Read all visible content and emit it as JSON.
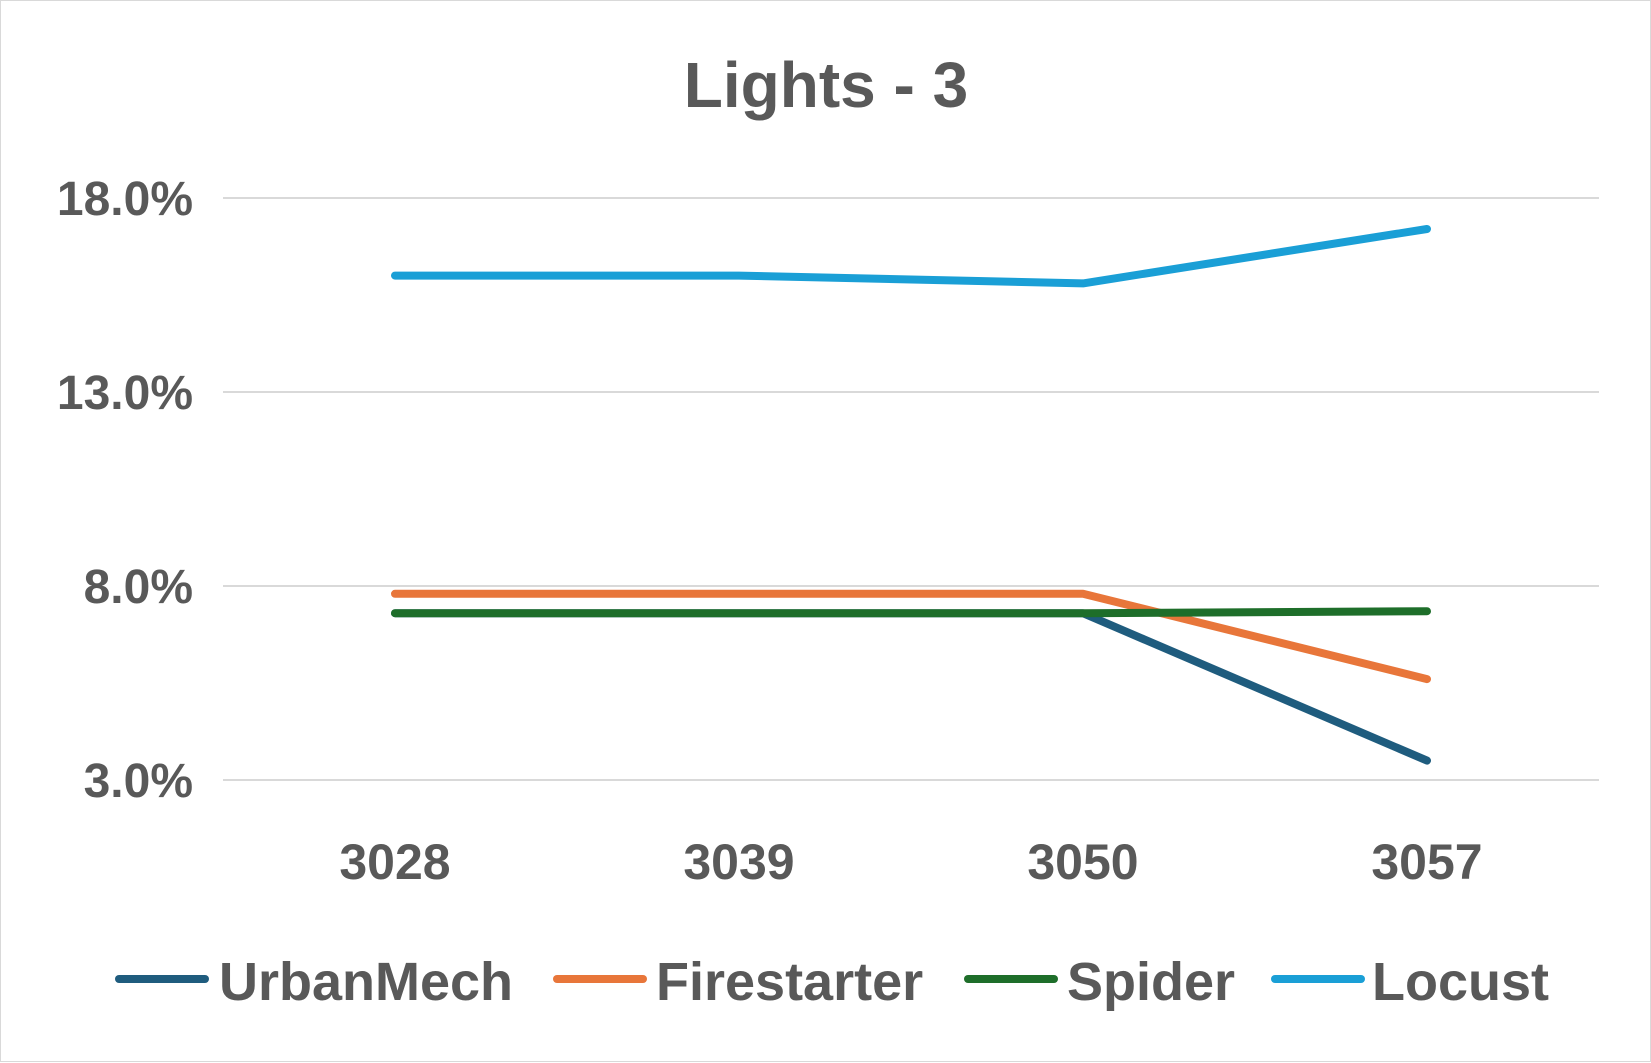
{
  "chart_data": {
    "type": "line",
    "title": "Lights - 3",
    "xlabel": "",
    "ylabel": "",
    "categories": [
      "3028",
      "3039",
      "3050",
      "3057"
    ],
    "ylim": [
      3.0,
      18.0
    ],
    "yticks": [
      3.0,
      8.0,
      13.0,
      18.0
    ],
    "ytick_labels": [
      "3.0%",
      "8.0%",
      "13.0%",
      "18.0%"
    ],
    "grid": true,
    "legend_position": "bottom",
    "series": [
      {
        "name": "UrbanMech",
        "color": "#1F5C7E",
        "values": [
          7.3,
          7.3,
          7.3,
          3.5
        ]
      },
      {
        "name": "Firestarter",
        "color": "#E8763A",
        "values": [
          7.8,
          7.8,
          7.8,
          5.6
        ]
      },
      {
        "name": "Spider",
        "color": "#1E6E2A",
        "values": [
          7.3,
          7.3,
          7.3,
          7.35
        ]
      },
      {
        "name": "Locust",
        "color": "#1A9FD6",
        "values": [
          16.0,
          16.0,
          15.8,
          17.2
        ]
      }
    ]
  }
}
